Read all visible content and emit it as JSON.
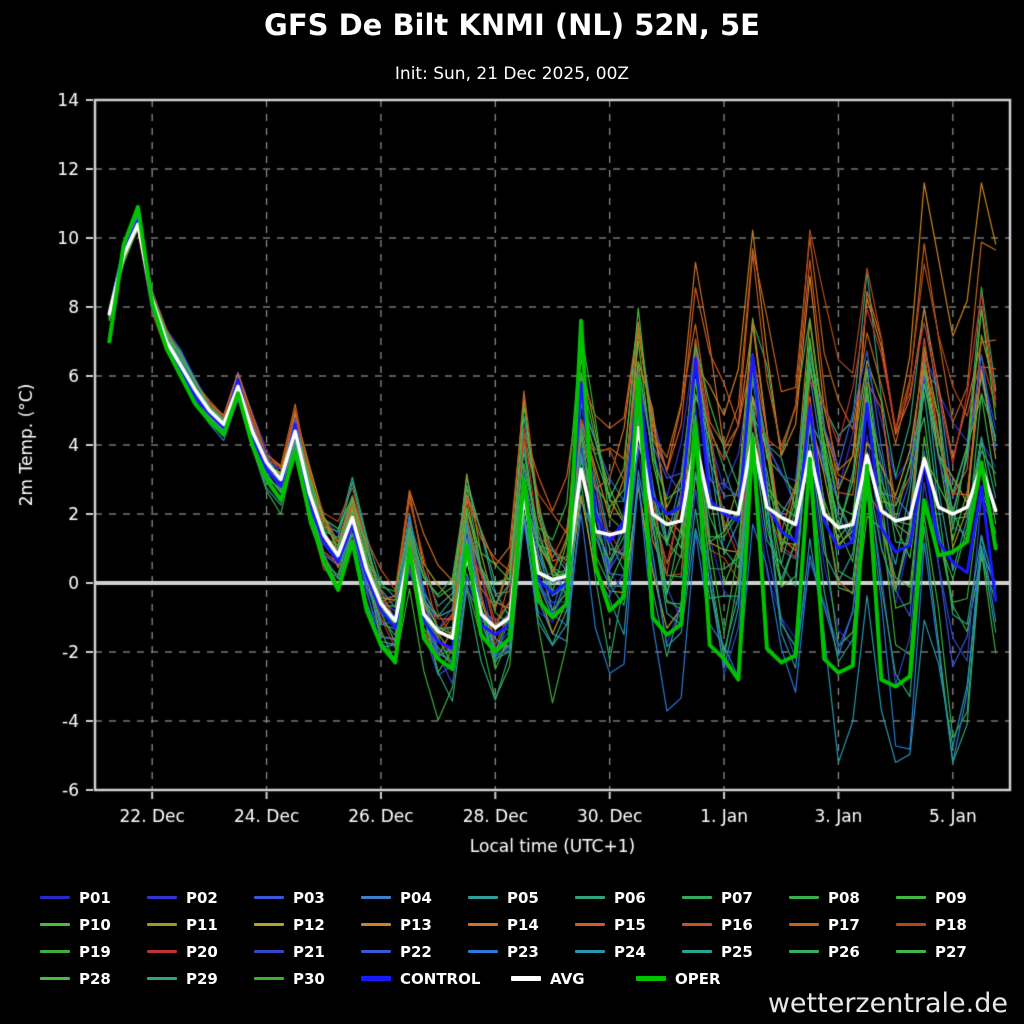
{
  "title": "GFS De Bilt KNMI (NL) 52N, 5E",
  "subtitle": "Init: Sun, 21 Dec 2025, 00Z",
  "watermark": "wetterzentrale.de",
  "chart_data": {
    "type": "line",
    "title": "GFS De Bilt KNMI (NL) 52N, 5E",
    "subtitle": "Init: Sun, 21 Dec 2025, 00Z",
    "xlabel": "Local time (UTC+1)",
    "ylabel": "2m Temp. (°C)",
    "ylim": [
      -6,
      14
    ],
    "y_ticks": [
      -6,
      -4,
      -2,
      0,
      2,
      4,
      6,
      8,
      10,
      12,
      14
    ],
    "x_domain_hours": [
      0,
      384
    ],
    "x_ticks": [
      {
        "hour": 24,
        "label": "22. Dec"
      },
      {
        "hour": 72,
        "label": "24. Dec"
      },
      {
        "hour": 120,
        "label": "26. Dec"
      },
      {
        "hour": 168,
        "label": "28. Dec"
      },
      {
        "hour": 216,
        "label": "30. Dec"
      },
      {
        "hour": 264,
        "label": "1. Jan"
      },
      {
        "hour": 312,
        "label": "3. Jan"
      },
      {
        "hour": 360,
        "label": "5. Jan"
      }
    ],
    "grid": "dashed",
    "zero_line": true,
    "hours": [
      6,
      12,
      18,
      24,
      30,
      36,
      42,
      48,
      54,
      60,
      66,
      72,
      78,
      84,
      90,
      96,
      102,
      108,
      114,
      120,
      126,
      132,
      138,
      144,
      150,
      156,
      162,
      168,
      174,
      180,
      186,
      192,
      198,
      204,
      210,
      216,
      222,
      228,
      234,
      240,
      246,
      252,
      258,
      264,
      270,
      276,
      282,
      288,
      294,
      300,
      306,
      312,
      318,
      324,
      330,
      336,
      342,
      348,
      354,
      360,
      366,
      372,
      378
    ],
    "series": [
      {
        "name": "CONTROL",
        "color": "#1a1aff",
        "width": 3,
        "values": [
          7.8,
          9.6,
          10.5,
          8.0,
          6.9,
          6.2,
          5.4,
          4.9,
          4.5,
          5.9,
          4.2,
          3.3,
          2.8,
          4.6,
          2.3,
          1.2,
          0.6,
          1.7,
          0.2,
          -0.8,
          -1.3,
          0.7,
          -1.1,
          -1.7,
          -1.9,
          0.9,
          -1.2,
          -1.5,
          -1.2,
          2.8,
          0.1,
          -0.3,
          0.0,
          5.8,
          2.0,
          1.2,
          1.8,
          5.9,
          2.5,
          2.0,
          2.2,
          6.5,
          2.4,
          2.0,
          1.8,
          6.6,
          2.3,
          1.5,
          1.2,
          5.1,
          1.8,
          1.0,
          1.2,
          5.2,
          1.6,
          0.9,
          1.1,
          3.5,
          1.2,
          0.6,
          0.3,
          2.8,
          -0.5
        ]
      },
      {
        "name": "AVG",
        "color": "#ffffff",
        "width": 3.5,
        "values": [
          7.8,
          9.5,
          10.4,
          8.2,
          7.0,
          6.3,
          5.6,
          5.0,
          4.6,
          5.7,
          4.4,
          3.5,
          3.0,
          4.4,
          2.6,
          1.4,
          0.8,
          1.9,
          0.4,
          -0.6,
          -1.1,
          0.9,
          -0.9,
          -1.4,
          -1.6,
          0.8,
          -0.9,
          -1.3,
          -1.0,
          2.5,
          0.3,
          0.1,
          0.2,
          3.3,
          1.5,
          1.4,
          1.5,
          4.5,
          2.0,
          1.7,
          1.8,
          4.1,
          2.2,
          2.1,
          2.0,
          4.2,
          2.2,
          1.9,
          1.7,
          3.8,
          2.0,
          1.6,
          1.7,
          3.7,
          2.1,
          1.8,
          1.9,
          3.6,
          2.2,
          2.0,
          2.2,
          3.4,
          2.1
        ]
      },
      {
        "name": "OPER",
        "color": "#00c300",
        "width": 4,
        "values": [
          7.0,
          9.8,
          10.9,
          8.1,
          6.8,
          6.0,
          5.2,
          4.7,
          4.3,
          5.5,
          4.0,
          3.0,
          2.4,
          3.8,
          2.0,
          0.6,
          -0.2,
          1.2,
          -0.8,
          -1.8,
          -2.3,
          1.0,
          -1.6,
          -2.2,
          -2.5,
          1.1,
          -1.5,
          -2.0,
          -1.6,
          3.0,
          -0.5,
          -1.0,
          -0.6,
          7.6,
          0.5,
          -0.8,
          -0.4,
          5.9,
          -1.0,
          -1.5,
          -1.2,
          4.6,
          -1.8,
          -2.2,
          -2.8,
          4.2,
          -1.9,
          -2.3,
          -2.1,
          3.6,
          -2.2,
          -2.6,
          -2.4,
          3.4,
          -2.8,
          -3.0,
          -2.7,
          2.4,
          0.8,
          0.9,
          1.2,
          3.5,
          1.0
        ]
      }
    ],
    "members": {
      "labels": [
        "P01",
        "P02",
        "P03",
        "P04",
        "P05",
        "P06",
        "P07",
        "P08",
        "P09",
        "P10",
        "P11",
        "P12",
        "P13",
        "P14",
        "P15",
        "P16",
        "P17",
        "P18",
        "P19",
        "P20",
        "P21",
        "P22",
        "P23",
        "P24",
        "P25",
        "P26",
        "P27",
        "P28",
        "P29",
        "P30"
      ],
      "colors": [
        "#2929c8",
        "#3333d6",
        "#3a56de",
        "#3f7ecb",
        "#2f9e9e",
        "#2fa47c",
        "#2faa5f",
        "#36b14c",
        "#3eb83e",
        "#49be36",
        "#9c9c22",
        "#b4a42c",
        "#cf8322",
        "#d1722a",
        "#d35a2a",
        "#c85426",
        "#c2641c",
        "#b04a1a",
        "#3fae3f",
        "#bf3333",
        "#3348c6",
        "#3a5ad0",
        "#2a7ad6",
        "#2a96ae",
        "#2aa690",
        "#38ae60",
        "#40b648",
        "#46bc40",
        "#2ca67c",
        "#3bb236"
      ],
      "drift": [
        -0.6,
        0.3,
        -0.2,
        0.5,
        -0.8,
        0.2,
        0.6,
        -0.3,
        0.4,
        0.1,
        0.7,
        1.0,
        1.6,
        1.8,
        1.4,
        1.2,
        2.0,
        1.5,
        -0.4,
        0.8,
        -1.0,
        0.3,
        -1.6,
        -1.8,
        0.5,
        -0.2,
        0.6,
        0.2,
        -1.2,
        0.4
      ],
      "amp": [
        0.8,
        0.3,
        0.6,
        0.4,
        0.7,
        0.5,
        0.9,
        0.4,
        0.6,
        0.5,
        0.7,
        0.4,
        0.8,
        0.6,
        0.5,
        0.7,
        0.4,
        0.6,
        0.9,
        0.5,
        0.7,
        0.6,
        0.8,
        1.0,
        0.6,
        0.7,
        0.5,
        0.6,
        0.8,
        0.7
      ],
      "seed": 97,
      "seed_step": 131,
      "width": 1.2
    }
  },
  "legend": {
    "main_entries": [
      "CONTROL",
      "AVG",
      "OPER"
    ]
  }
}
